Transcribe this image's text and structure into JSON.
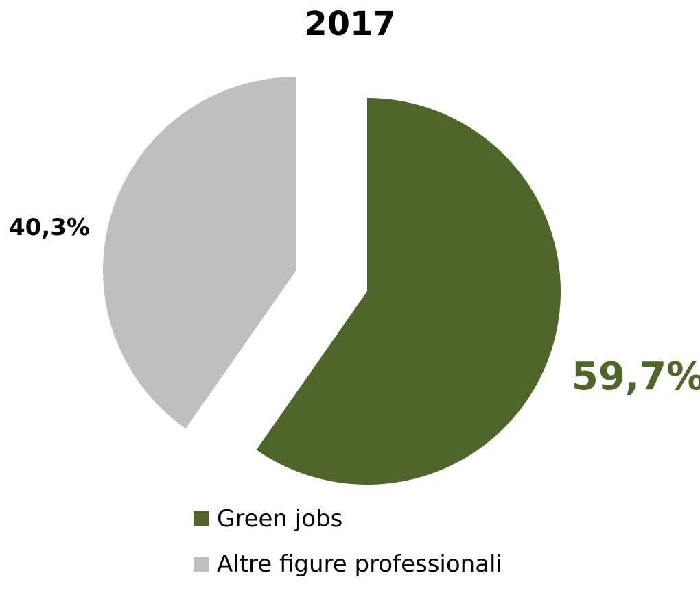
{
  "chart_data": {
    "type": "pie",
    "title": "2017",
    "categories": [
      "Green jobs",
      "Altre figure professionali"
    ],
    "values": [
      59.7,
      40.3
    ],
    "data_labels": [
      "59,7%",
      "40,3%"
    ],
    "colors": [
      "#50652a",
      "#bfbfbf"
    ],
    "label_colors": [
      "#50652a",
      "#000000"
    ],
    "exploded": true,
    "start_angle": "12 o'clock, clockwise",
    "legend": "bottom"
  }
}
